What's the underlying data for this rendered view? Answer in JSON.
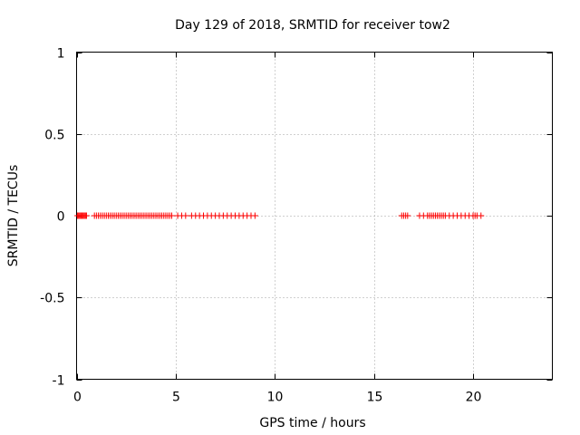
{
  "chart_data": {
    "type": "scatter",
    "title": "Day 129 of 2018, SRMTID for receiver tow2",
    "xlabel": "GPS time / hours",
    "ylabel": "SRMTID / TECUs",
    "xlim": [
      0,
      24
    ],
    "ylim": [
      -1,
      1
    ],
    "xticks": [
      0,
      5,
      10,
      15,
      20
    ],
    "xtick_labels": [
      "0",
      "5",
      "10",
      "15",
      "20"
    ],
    "yticks": [
      1,
      0.5,
      0,
      -0.5,
      -1
    ],
    "ytick_labels": [
      "1",
      "0.5",
      "0",
      "-0.5",
      "-1"
    ],
    "grid": true,
    "marker": "plus",
    "series": [
      {
        "color": "#ff0000",
        "x": [
          0.05,
          0.1,
          0.15,
          0.2,
          0.25,
          0.3,
          0.35,
          0.4,
          0.45,
          0.5,
          0.9,
          1.0,
          1.1,
          1.2,
          1.3,
          1.4,
          1.5,
          1.6,
          1.7,
          1.8,
          1.9,
          2.0,
          2.1,
          2.2,
          2.3,
          2.4,
          2.5,
          2.6,
          2.7,
          2.8,
          2.9,
          3.0,
          3.1,
          3.2,
          3.3,
          3.4,
          3.5,
          3.6,
          3.7,
          3.8,
          3.9,
          4.0,
          4.1,
          4.2,
          4.3,
          4.4,
          4.5,
          4.6,
          4.7,
          4.8,
          5.1,
          5.3,
          5.5,
          5.8,
          6.0,
          6.2,
          6.4,
          6.6,
          6.8,
          7.0,
          7.2,
          7.4,
          7.6,
          7.8,
          8.0,
          8.2,
          8.4,
          8.6,
          8.8,
          9.0,
          16.4,
          16.5,
          16.6,
          16.7,
          17.3,
          17.5,
          17.7,
          17.8,
          17.9,
          18.0,
          18.1,
          18.2,
          18.3,
          18.4,
          18.5,
          18.6,
          18.8,
          19.0,
          19.2,
          19.4,
          19.6,
          19.8,
          20.0,
          20.1,
          20.2,
          20.4
        ],
        "y": [
          0,
          0,
          0,
          0,
          0,
          0,
          0,
          0,
          0,
          0,
          0,
          0,
          0,
          0,
          0,
          0,
          0,
          0,
          0,
          0,
          0,
          0,
          0,
          0,
          0,
          0,
          0,
          0,
          0,
          0,
          0,
          0,
          0,
          0,
          0,
          0,
          0,
          0,
          0,
          0,
          0,
          0,
          0,
          0,
          0,
          0,
          0,
          0,
          0,
          0,
          0,
          0,
          0,
          0,
          0,
          0,
          0,
          0,
          0,
          0,
          0,
          0,
          0,
          0,
          0,
          0,
          0,
          0,
          0,
          0,
          0,
          0,
          0,
          0,
          0,
          0,
          0,
          0,
          0,
          0,
          0,
          0,
          0,
          0,
          0,
          0,
          0,
          0,
          0,
          0,
          0,
          0,
          0,
          0,
          0,
          0
        ]
      }
    ]
  }
}
